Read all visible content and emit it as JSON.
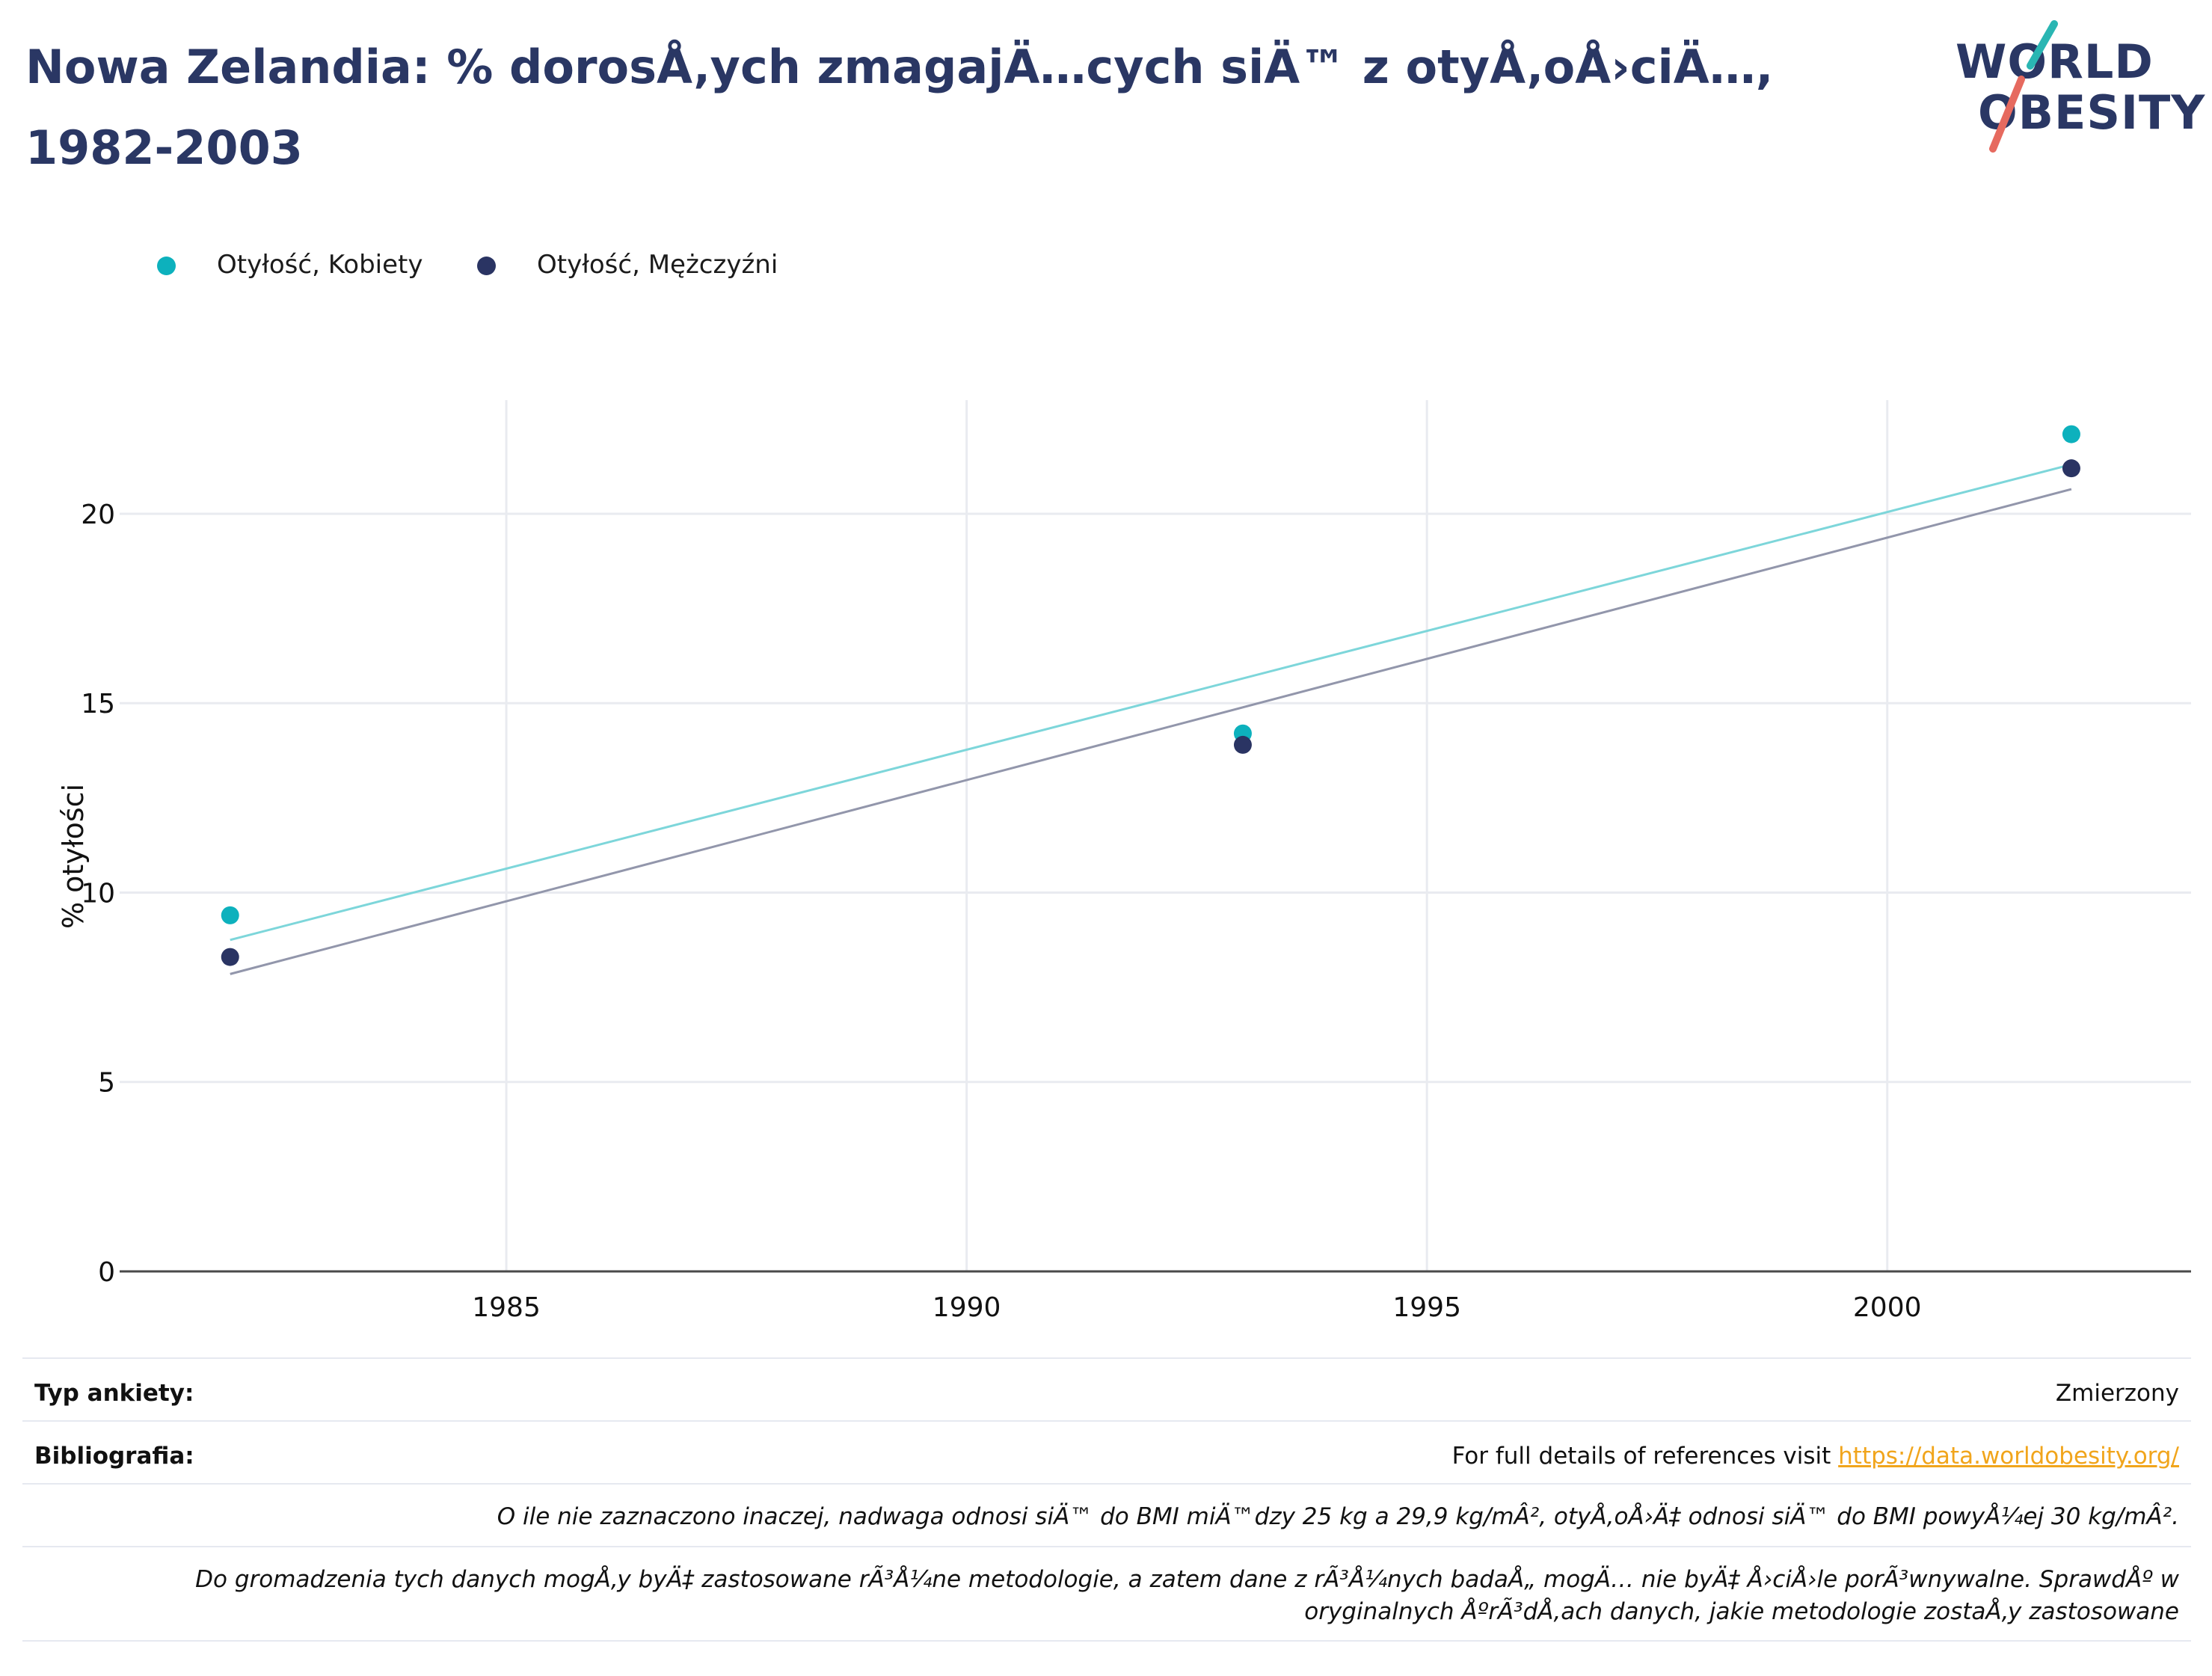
{
  "title": "Nowa Zelandia: % dorosÅ‚ych zmagajÄ…cych siÄ™ z otyÅ‚oÅ›ciÄ…, 1982-2003",
  "logo": {
    "line1": "WORLD",
    "line2": "OBESITY",
    "accent_teal": "#2ab6b3",
    "accent_red": "#e66a5f",
    "text_color": "#2a3764"
  },
  "chart_data": {
    "type": "scatter",
    "ylabel": "% otyłości",
    "xlabel": "",
    "xlim": [
      1980.8,
      2003.3
    ],
    "ylim": [
      0,
      23
    ],
    "x_ticks": [
      1985,
      1990,
      1995,
      2000
    ],
    "y_ticks": [
      0,
      5,
      10,
      15,
      20
    ],
    "grid": true,
    "legend_position": "top-left",
    "series": [
      {
        "name": "Otyłość, Kobiety",
        "color": "#0db1bd",
        "x": [
          1982,
          1993,
          2002
        ],
        "y": [
          9.4,
          14.2,
          22.1
        ],
        "trendline": {
          "x": [
            1982,
            2002
          ],
          "y": [
            8.75,
            21.3
          ],
          "color": "#7dd6da"
        }
      },
      {
        "name": "Otyłość, Mężczyźni",
        "color": "#2a3463",
        "x": [
          1982,
          1993,
          2002
        ],
        "y": [
          8.3,
          13.9,
          21.2
        ],
        "trendline": {
          "x": [
            1982,
            2002
          ],
          "y": [
            7.85,
            20.65
          ],
          "color": "#9296ab"
        }
      }
    ]
  },
  "info": {
    "survey_type_label": "Typ ankiety:",
    "survey_type_value": "Zmierzony",
    "bibliography_label": "Bibliografia:",
    "bibliography_text": "For full details of references visit ",
    "bibliography_link": "https://data.worldobesity.org/",
    "note1": "O ile nie zaznaczono inaczej, nadwaga odnosi siÄ™ do BMI miÄ™dzy 25 kg a 29,9 kg/mÂ², otyÅ‚oÅ›Ä‡ odnosi siÄ™ do BMI powyÅ¼ej 30 kg/mÂ².",
    "note2": "Do gromadzenia tych danych mogÅ‚y byÄ‡ zastosowane rÃ³Å¼ne metodologie, a zatem dane z rÃ³Å¼nych badaÅ„ mogÄ… nie byÄ‡ Å›ciÅ›le porÃ³wnywalne. SprawdÅº w oryginalnych ÅºrÃ³dÅ‚ach danych, jakie metodologie zostaÅ‚y zastosowane"
  }
}
